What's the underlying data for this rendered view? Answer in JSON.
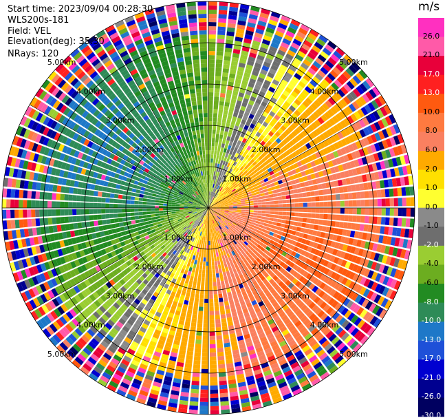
{
  "header": {
    "start_time": "Start time: 2023/09/04 00:28:30",
    "instrument": "WLS200s-181",
    "field": "Field: VEL",
    "elevation": "Elevation(deg): 35.30",
    "nrays": "NRays: 120"
  },
  "chart_data": {
    "type": "ppi-polar-scan",
    "field": "VEL",
    "nrays": 120,
    "range_rings_km": [
      1.0,
      2.0,
      3.0,
      4.0,
      5.0
    ],
    "ring_label_text": [
      "1.00km",
      "2.00km",
      "3.00km",
      "4.00km",
      "5.00km"
    ],
    "max_range_km": 5.0,
    "crosshair": true,
    "diagonal_lines_deg": [
      30,
      60
    ],
    "velocity_pattern": {
      "description_free": true,
      "toward_direction_deg": 300,
      "away_direction_deg": 120,
      "peak_velocity_ms": 10,
      "noise_start_km": 4.2
    },
    "colorbar": {
      "unit": "m/s",
      "labels": [
        "26.0",
        "21.0",
        "17.0",
        "13.0",
        "10.0",
        "8.0",
        "6.0",
        "2.0",
        "1.0",
        "0.0",
        "-1.0",
        "-2.0",
        "-4.0",
        "-6.0",
        "-8.0",
        "-10.0",
        "-13.0",
        "-17.0",
        "-21.0",
        "-26.0",
        "-30.0"
      ],
      "bounds": [
        30,
        26,
        21,
        17,
        13,
        10,
        8,
        6,
        2,
        1,
        0,
        -1,
        -2,
        -4,
        -6,
        -8,
        -10,
        -13,
        -17,
        -21,
        -26,
        -30
      ],
      "colors": [
        "#ff30c0",
        "#ff5aa8",
        "#e8003a",
        "#ff2020",
        "#ff5a10",
        "#ff7a40",
        "#fa8060",
        "#ffaa00",
        "#ffe000",
        "#ffff30",
        "#8a8a8a",
        "#6e6e6e",
        "#9acd32",
        "#6cad20",
        "#228b22",
        "#2e8b57",
        "#1e78c8",
        "#1e50d8",
        "#0000d0",
        "#000090",
        "#000060"
      ]
    }
  }
}
